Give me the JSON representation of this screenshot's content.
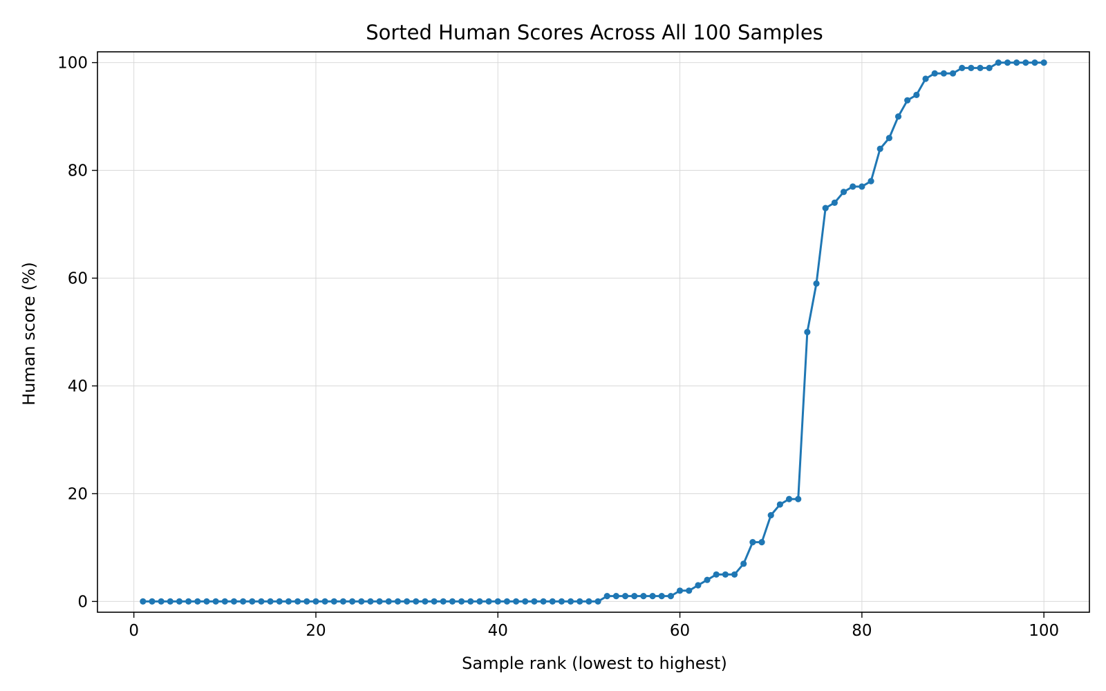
{
  "chart_data": {
    "type": "line",
    "title": "Sorted Human Scores Across All 100 Samples",
    "xlabel": "Sample rank (lowest to highest)",
    "ylabel": "Human score (%)",
    "xlim": [
      -4,
      105
    ],
    "ylim": [
      -2,
      102
    ],
    "xticks": [
      0,
      20,
      40,
      60,
      80,
      100
    ],
    "yticks": [
      0,
      20,
      40,
      60,
      80,
      100
    ],
    "xtick_labels": [
      "0",
      "20",
      "40",
      "60",
      "80",
      "100"
    ],
    "ytick_labels": [
      "0",
      "20",
      "40",
      "60",
      "80",
      "100"
    ],
    "grid": true,
    "legend": "none",
    "series": [
      {
        "color": "#1f77b4",
        "x": [
          1,
          2,
          3,
          4,
          5,
          6,
          7,
          8,
          9,
          10,
          11,
          12,
          13,
          14,
          15,
          16,
          17,
          18,
          19,
          20,
          21,
          22,
          23,
          24,
          25,
          26,
          27,
          28,
          29,
          30,
          31,
          32,
          33,
          34,
          35,
          36,
          37,
          38,
          39,
          40,
          41,
          42,
          43,
          44,
          45,
          46,
          47,
          48,
          49,
          50,
          51,
          52,
          53,
          54,
          55,
          56,
          57,
          58,
          59,
          60,
          61,
          62,
          63,
          64,
          65,
          66,
          67,
          68,
          69,
          70,
          71,
          72,
          73,
          74,
          75,
          76,
          77,
          78,
          79,
          80,
          81,
          82,
          83,
          84,
          85,
          86,
          87,
          88,
          89,
          90,
          91,
          92,
          93,
          94,
          95,
          96,
          97,
          98,
          99,
          100
        ],
        "y": [
          0,
          0,
          0,
          0,
          0,
          0,
          0,
          0,
          0,
          0,
          0,
          0,
          0,
          0,
          0,
          0,
          0,
          0,
          0,
          0,
          0,
          0,
          0,
          0,
          0,
          0,
          0,
          0,
          0,
          0,
          0,
          0,
          0,
          0,
          0,
          0,
          0,
          0,
          0,
          0,
          0,
          0,
          0,
          0,
          0,
          0,
          0,
          0,
          0,
          0,
          0,
          1,
          1,
          1,
          1,
          1,
          1,
          1,
          1,
          2,
          2,
          3,
          4,
          5,
          5,
          5,
          7,
          11,
          11,
          16,
          18,
          19,
          19,
          50,
          59,
          73,
          74,
          76,
          77,
          77,
          78,
          84,
          86,
          90,
          93,
          94,
          97,
          98,
          98,
          98,
          99,
          99,
          99,
          99,
          100,
          100,
          100,
          100,
          100,
          100
        ]
      }
    ]
  }
}
